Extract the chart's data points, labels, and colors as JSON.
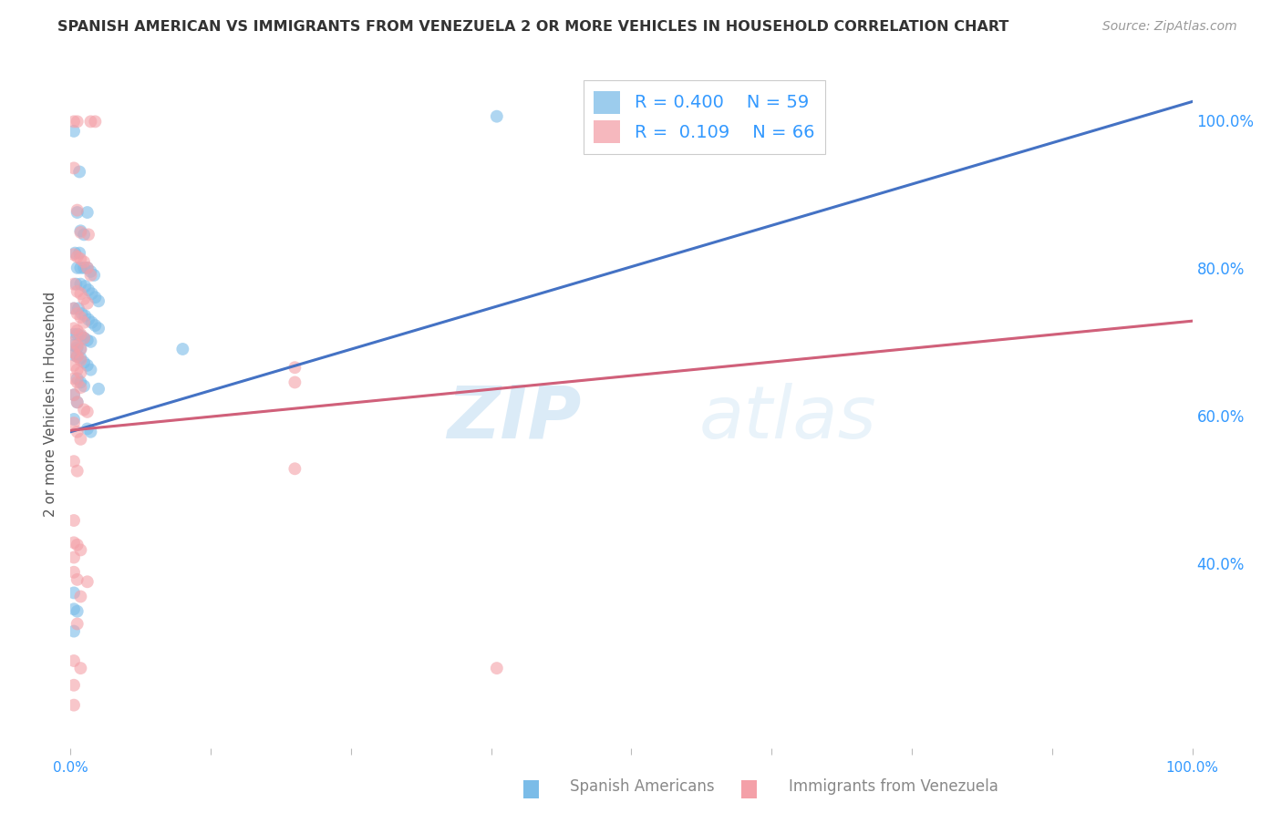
{
  "title": "SPANISH AMERICAN VS IMMIGRANTS FROM VENEZUELA 2 OR MORE VEHICLES IN HOUSEHOLD CORRELATION CHART",
  "source": "Source: ZipAtlas.com",
  "ylabel": "2 or more Vehicles in Household",
  "ylabel_right_ticks": [
    "40.0%",
    "60.0%",
    "80.0%",
    "100.0%"
  ],
  "ylabel_right_vals": [
    0.4,
    0.6,
    0.8,
    1.0
  ],
  "watermark_zip": "ZIP",
  "watermark_atlas": "atlas",
  "legend_r1": "R = 0.400",
  "legend_n1": "N = 59",
  "legend_r2": "R =  0.109",
  "legend_n2": "N = 66",
  "blue_color": "#7bbce8",
  "pink_color": "#f4a0a8",
  "blue_line_color": "#4472c4",
  "pink_line_color": "#d0607a",
  "blue_scatter": [
    [
      0.003,
      0.985
    ],
    [
      0.008,
      0.93
    ],
    [
      0.006,
      0.875
    ],
    [
      0.015,
      0.875
    ],
    [
      0.009,
      0.85
    ],
    [
      0.012,
      0.845
    ],
    [
      0.004,
      0.82
    ],
    [
      0.008,
      0.82
    ],
    [
      0.006,
      0.8
    ],
    [
      0.009,
      0.8
    ],
    [
      0.012,
      0.8
    ],
    [
      0.015,
      0.8
    ],
    [
      0.018,
      0.795
    ],
    [
      0.021,
      0.79
    ],
    [
      0.005,
      0.778
    ],
    [
      0.009,
      0.778
    ],
    [
      0.013,
      0.775
    ],
    [
      0.016,
      0.77
    ],
    [
      0.019,
      0.765
    ],
    [
      0.022,
      0.76
    ],
    [
      0.025,
      0.755
    ],
    [
      0.003,
      0.745
    ],
    [
      0.007,
      0.745
    ],
    [
      0.01,
      0.738
    ],
    [
      0.013,
      0.735
    ],
    [
      0.016,
      0.73
    ],
    [
      0.019,
      0.726
    ],
    [
      0.022,
      0.722
    ],
    [
      0.025,
      0.718
    ],
    [
      0.003,
      0.71
    ],
    [
      0.006,
      0.71
    ],
    [
      0.009,
      0.708
    ],
    [
      0.012,
      0.705
    ],
    [
      0.015,
      0.702
    ],
    [
      0.018,
      0.7
    ],
    [
      0.003,
      0.695
    ],
    [
      0.006,
      0.692
    ],
    [
      0.009,
      0.69
    ],
    [
      0.003,
      0.682
    ],
    [
      0.006,
      0.68
    ],
    [
      0.009,
      0.678
    ],
    [
      0.012,
      0.672
    ],
    [
      0.015,
      0.668
    ],
    [
      0.018,
      0.662
    ],
    [
      0.006,
      0.65
    ],
    [
      0.009,
      0.645
    ],
    [
      0.012,
      0.64
    ],
    [
      0.025,
      0.636
    ],
    [
      0.003,
      0.628
    ],
    [
      0.006,
      0.618
    ],
    [
      0.003,
      0.595
    ],
    [
      0.015,
      0.582
    ],
    [
      0.018,
      0.578
    ],
    [
      0.003,
      0.36
    ],
    [
      0.003,
      0.338
    ],
    [
      0.006,
      0.335
    ],
    [
      0.003,
      0.308
    ],
    [
      0.1,
      0.69
    ],
    [
      0.38,
      1.005
    ]
  ],
  "pink_scatter": [
    [
      0.003,
      0.998
    ],
    [
      0.006,
      0.998
    ],
    [
      0.018,
      0.998
    ],
    [
      0.022,
      0.998
    ],
    [
      0.003,
      0.935
    ],
    [
      0.006,
      0.878
    ],
    [
      0.009,
      0.848
    ],
    [
      0.016,
      0.845
    ],
    [
      0.003,
      0.818
    ],
    [
      0.006,
      0.815
    ],
    [
      0.009,
      0.812
    ],
    [
      0.012,
      0.808
    ],
    [
      0.015,
      0.8
    ],
    [
      0.018,
      0.79
    ],
    [
      0.003,
      0.778
    ],
    [
      0.006,
      0.768
    ],
    [
      0.009,
      0.765
    ],
    [
      0.012,
      0.758
    ],
    [
      0.015,
      0.752
    ],
    [
      0.003,
      0.745
    ],
    [
      0.006,
      0.738
    ],
    [
      0.009,
      0.733
    ],
    [
      0.012,
      0.726
    ],
    [
      0.003,
      0.718
    ],
    [
      0.006,
      0.715
    ],
    [
      0.009,
      0.71
    ],
    [
      0.012,
      0.705
    ],
    [
      0.003,
      0.7
    ],
    [
      0.006,
      0.695
    ],
    [
      0.009,
      0.69
    ],
    [
      0.003,
      0.685
    ],
    [
      0.006,
      0.68
    ],
    [
      0.009,
      0.675
    ],
    [
      0.003,
      0.668
    ],
    [
      0.006,
      0.662
    ],
    [
      0.009,
      0.658
    ],
    [
      0.003,
      0.65
    ],
    [
      0.006,
      0.645
    ],
    [
      0.009,
      0.638
    ],
    [
      0.003,
      0.628
    ],
    [
      0.006,
      0.618
    ],
    [
      0.012,
      0.608
    ],
    [
      0.015,
      0.605
    ],
    [
      0.003,
      0.59
    ],
    [
      0.006,
      0.578
    ],
    [
      0.009,
      0.568
    ],
    [
      0.003,
      0.538
    ],
    [
      0.006,
      0.525
    ],
    [
      0.003,
      0.458
    ],
    [
      0.003,
      0.428
    ],
    [
      0.006,
      0.425
    ],
    [
      0.009,
      0.418
    ],
    [
      0.003,
      0.408
    ],
    [
      0.003,
      0.388
    ],
    [
      0.006,
      0.378
    ],
    [
      0.015,
      0.375
    ],
    [
      0.009,
      0.355
    ],
    [
      0.006,
      0.318
    ],
    [
      0.003,
      0.268
    ],
    [
      0.009,
      0.258
    ],
    [
      0.003,
      0.235
    ],
    [
      0.003,
      0.208
    ],
    [
      0.2,
      0.645
    ],
    [
      0.2,
      0.665
    ],
    [
      0.2,
      0.528
    ],
    [
      0.38,
      0.258
    ]
  ],
  "blue_line_x": [
    0.0,
    1.0
  ],
  "blue_line_y": [
    0.578,
    1.025
  ],
  "pink_line_x": [
    0.0,
    1.0
  ],
  "pink_line_y": [
    0.58,
    0.728
  ],
  "pink_bgline_x": [
    0.0,
    1.0
  ],
  "pink_bgline_y": [
    0.58,
    0.728
  ],
  "xlim": [
    0.0,
    1.0
  ],
  "ylim": [
    0.15,
    1.08
  ],
  "xticks": [
    0.0,
    0.125,
    0.25,
    0.375,
    0.5,
    0.625,
    0.75,
    0.875,
    1.0
  ],
  "background_color": "#ffffff",
  "grid_color": "#d0d0d0"
}
